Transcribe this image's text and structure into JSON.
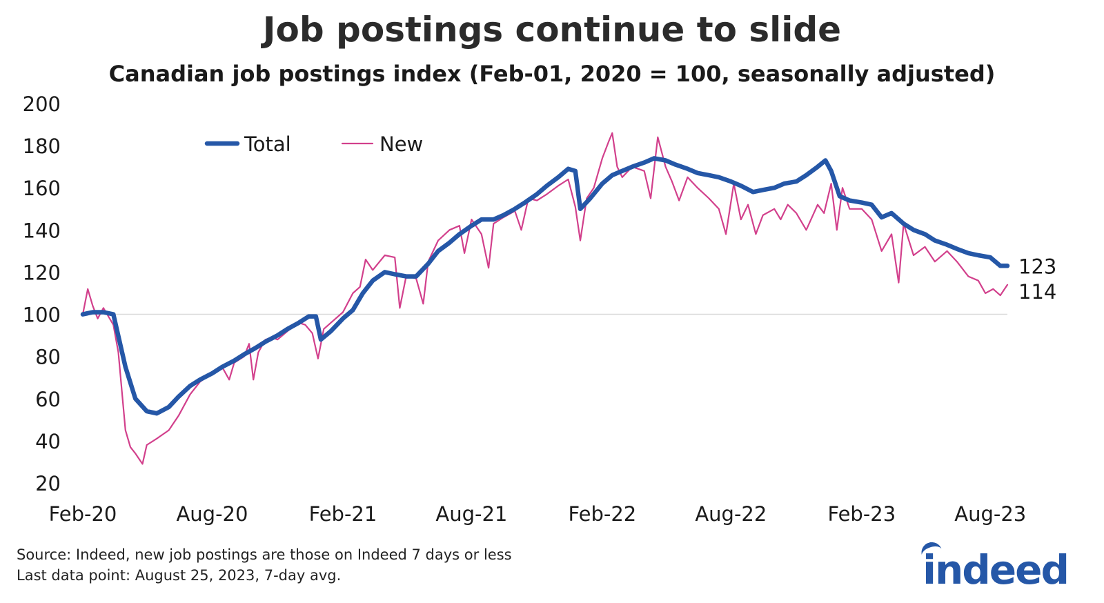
{
  "header": {
    "title": "Job postings continue to slide",
    "subtitle": "Canadian job postings index (Feb-01, 2020 = 100, seasonally adjusted)"
  },
  "footer": {
    "source": "Source: Indeed, new job postings are those on Indeed 7 days or less",
    "last_point": "Last data point: August 25, 2023, 7-day avg."
  },
  "logo": {
    "text": "indeed"
  },
  "colors": {
    "total": "#2557a7",
    "new": "#d2408c",
    "reference": "#d9d9d9"
  },
  "chart_data": {
    "type": "line",
    "title": "Job postings continue to slide",
    "subtitle": "Canadian job postings index (Feb-01, 2020 = 100, seasonally adjusted)",
    "xlabel": "",
    "ylabel": "",
    "ylim": [
      20,
      200
    ],
    "yticks": [
      20,
      40,
      60,
      80,
      100,
      120,
      140,
      160,
      180,
      200
    ],
    "xticks": [
      "Feb-20",
      "Aug-20",
      "Feb-21",
      "Aug-21",
      "Feb-22",
      "Aug-22",
      "Feb-23",
      "Aug-23"
    ],
    "x_range": [
      "2020-02-01",
      "2023-08-25"
    ],
    "reference_line": 100,
    "legend": {
      "placement": "top-left",
      "entries": [
        "Total",
        "New"
      ]
    },
    "end_labels": [
      {
        "series": "Total",
        "text": "123"
      },
      {
        "series": "New",
        "text": "114"
      }
    ],
    "series": [
      {
        "name": "Total",
        "points": [
          [
            "2020-02-01",
            100
          ],
          [
            "2020-02-15",
            101
          ],
          [
            "2020-03-01",
            101
          ],
          [
            "2020-03-15",
            100
          ],
          [
            "2020-04-01",
            75
          ],
          [
            "2020-04-15",
            60
          ],
          [
            "2020-05-01",
            54
          ],
          [
            "2020-05-15",
            53
          ],
          [
            "2020-06-01",
            56
          ],
          [
            "2020-06-15",
            61
          ],
          [
            "2020-07-01",
            66
          ],
          [
            "2020-07-15",
            69
          ],
          [
            "2020-08-01",
            72
          ],
          [
            "2020-08-15",
            75
          ],
          [
            "2020-09-01",
            78
          ],
          [
            "2020-09-15",
            81
          ],
          [
            "2020-10-01",
            84
          ],
          [
            "2020-10-15",
            87
          ],
          [
            "2020-11-01",
            90
          ],
          [
            "2020-11-15",
            93
          ],
          [
            "2020-12-01",
            96
          ],
          [
            "2020-12-15",
            99
          ],
          [
            "2020-12-25",
            99
          ],
          [
            "2021-01-01",
            88
          ],
          [
            "2021-01-15",
            92
          ],
          [
            "2021-02-01",
            98
          ],
          [
            "2021-02-15",
            102
          ],
          [
            "2021-03-01",
            110
          ],
          [
            "2021-03-15",
            116
          ],
          [
            "2021-04-01",
            120
          ],
          [
            "2021-04-15",
            119
          ],
          [
            "2021-05-01",
            118
          ],
          [
            "2021-05-15",
            118
          ],
          [
            "2021-06-01",
            124
          ],
          [
            "2021-06-15",
            130
          ],
          [
            "2021-07-01",
            134
          ],
          [
            "2021-07-15",
            138
          ],
          [
            "2021-08-01",
            142
          ],
          [
            "2021-08-15",
            145
          ],
          [
            "2021-09-01",
            145
          ],
          [
            "2021-09-15",
            147
          ],
          [
            "2021-10-01",
            150
          ],
          [
            "2021-10-15",
            153
          ],
          [
            "2021-11-01",
            157
          ],
          [
            "2021-11-15",
            161
          ],
          [
            "2021-12-01",
            165
          ],
          [
            "2021-12-15",
            169
          ],
          [
            "2021-12-25",
            168
          ],
          [
            "2022-01-01",
            150
          ],
          [
            "2022-01-15",
            155
          ],
          [
            "2022-02-01",
            162
          ],
          [
            "2022-02-15",
            166
          ],
          [
            "2022-03-01",
            168
          ],
          [
            "2022-03-15",
            170
          ],
          [
            "2022-04-01",
            172
          ],
          [
            "2022-04-15",
            174
          ],
          [
            "2022-05-01",
            173
          ],
          [
            "2022-05-15",
            171
          ],
          [
            "2022-06-01",
            169
          ],
          [
            "2022-06-15",
            167
          ],
          [
            "2022-07-01",
            166
          ],
          [
            "2022-07-15",
            165
          ],
          [
            "2022-08-01",
            163
          ],
          [
            "2022-08-15",
            161
          ],
          [
            "2022-09-01",
            158
          ],
          [
            "2022-09-15",
            159
          ],
          [
            "2022-10-01",
            160
          ],
          [
            "2022-10-15",
            162
          ],
          [
            "2022-11-01",
            163
          ],
          [
            "2022-11-15",
            166
          ],
          [
            "2022-12-01",
            170
          ],
          [
            "2022-12-12",
            173
          ],
          [
            "2022-12-20",
            168
          ],
          [
            "2023-01-01",
            156
          ],
          [
            "2023-01-15",
            154
          ],
          [
            "2023-02-01",
            153
          ],
          [
            "2023-02-15",
            152
          ],
          [
            "2023-03-01",
            146
          ],
          [
            "2023-03-15",
            148
          ],
          [
            "2023-04-01",
            143
          ],
          [
            "2023-04-15",
            140
          ],
          [
            "2023-05-01",
            138
          ],
          [
            "2023-05-15",
            135
          ],
          [
            "2023-06-01",
            133
          ],
          [
            "2023-06-15",
            131
          ],
          [
            "2023-07-01",
            129
          ],
          [
            "2023-07-15",
            128
          ],
          [
            "2023-08-01",
            127
          ],
          [
            "2023-08-15",
            123
          ],
          [
            "2023-08-25",
            123
          ]
        ]
      },
      {
        "name": "New",
        "points": [
          [
            "2020-02-01",
            100
          ],
          [
            "2020-02-08",
            112
          ],
          [
            "2020-02-15",
            104
          ],
          [
            "2020-02-22",
            98
          ],
          [
            "2020-03-01",
            103
          ],
          [
            "2020-03-08",
            99
          ],
          [
            "2020-03-15",
            95
          ],
          [
            "2020-03-22",
            82
          ],
          [
            "2020-04-01",
            45
          ],
          [
            "2020-04-08",
            37
          ],
          [
            "2020-04-15",
            34
          ],
          [
            "2020-04-25",
            29
          ],
          [
            "2020-05-01",
            38
          ],
          [
            "2020-05-15",
            41
          ],
          [
            "2020-06-01",
            45
          ],
          [
            "2020-06-15",
            52
          ],
          [
            "2020-07-01",
            62
          ],
          [
            "2020-07-15",
            68
          ],
          [
            "2020-08-01",
            72
          ],
          [
            "2020-08-15",
            75
          ],
          [
            "2020-08-25",
            69
          ],
          [
            "2020-09-01",
            77
          ],
          [
            "2020-09-15",
            80
          ],
          [
            "2020-09-22",
            86
          ],
          [
            "2020-09-28",
            69
          ],
          [
            "2020-10-05",
            82
          ],
          [
            "2020-10-15",
            88
          ],
          [
            "2020-10-25",
            89
          ],
          [
            "2020-11-01",
            88
          ],
          [
            "2020-11-15",
            92
          ],
          [
            "2020-12-01",
            96
          ],
          [
            "2020-12-10",
            95
          ],
          [
            "2020-12-20",
            91
          ],
          [
            "2020-12-28",
            79
          ],
          [
            "2021-01-05",
            93
          ],
          [
            "2021-01-15",
            96
          ],
          [
            "2021-02-01",
            101
          ],
          [
            "2021-02-15",
            110
          ],
          [
            "2021-02-25",
            113
          ],
          [
            "2021-03-05",
            126
          ],
          [
            "2021-03-15",
            121
          ],
          [
            "2021-04-01",
            128
          ],
          [
            "2021-04-15",
            127
          ],
          [
            "2021-04-22",
            103
          ],
          [
            "2021-05-01",
            118
          ],
          [
            "2021-05-15",
            117
          ],
          [
            "2021-05-25",
            105
          ],
          [
            "2021-06-01",
            125
          ],
          [
            "2021-06-15",
            135
          ],
          [
            "2021-07-01",
            140
          ],
          [
            "2021-07-15",
            142
          ],
          [
            "2021-07-22",
            129
          ],
          [
            "2021-08-01",
            145
          ],
          [
            "2021-08-15",
            138
          ],
          [
            "2021-08-25",
            122
          ],
          [
            "2021-09-01",
            143
          ],
          [
            "2021-09-15",
            146
          ],
          [
            "2021-10-01",
            149
          ],
          [
            "2021-10-10",
            140
          ],
          [
            "2021-10-20",
            155
          ],
          [
            "2021-11-01",
            154
          ],
          [
            "2021-11-15",
            157
          ],
          [
            "2021-12-01",
            161
          ],
          [
            "2021-12-15",
            164
          ],
          [
            "2021-12-25",
            151
          ],
          [
            "2022-01-01",
            135
          ],
          [
            "2022-01-10",
            155
          ],
          [
            "2022-01-20",
            160
          ],
          [
            "2022-02-01",
            174
          ],
          [
            "2022-02-10",
            182
          ],
          [
            "2022-02-15",
            186
          ],
          [
            "2022-02-22",
            170
          ],
          [
            "2022-03-01",
            165
          ],
          [
            "2022-03-15",
            170
          ],
          [
            "2022-04-01",
            168
          ],
          [
            "2022-04-10",
            155
          ],
          [
            "2022-04-20",
            184
          ],
          [
            "2022-05-01",
            170
          ],
          [
            "2022-05-10",
            163
          ],
          [
            "2022-05-20",
            154
          ],
          [
            "2022-06-01",
            165
          ],
          [
            "2022-06-15",
            160
          ],
          [
            "2022-07-01",
            155
          ],
          [
            "2022-07-15",
            150
          ],
          [
            "2022-07-25",
            138
          ],
          [
            "2022-08-05",
            162
          ],
          [
            "2022-08-15",
            145
          ],
          [
            "2022-08-25",
            152
          ],
          [
            "2022-09-05",
            138
          ],
          [
            "2022-09-15",
            147
          ],
          [
            "2022-10-01",
            150
          ],
          [
            "2022-10-10",
            145
          ],
          [
            "2022-10-20",
            152
          ],
          [
            "2022-11-01",
            148
          ],
          [
            "2022-11-15",
            140
          ],
          [
            "2022-12-01",
            152
          ],
          [
            "2022-12-10",
            148
          ],
          [
            "2022-12-20",
            162
          ],
          [
            "2022-12-28",
            140
          ],
          [
            "2023-01-05",
            160
          ],
          [
            "2023-01-15",
            150
          ],
          [
            "2023-02-01",
            150
          ],
          [
            "2023-02-15",
            145
          ],
          [
            "2023-03-01",
            130
          ],
          [
            "2023-03-15",
            138
          ],
          [
            "2023-03-25",
            115
          ],
          [
            "2023-04-01",
            143
          ],
          [
            "2023-04-15",
            128
          ],
          [
            "2023-05-01",
            132
          ],
          [
            "2023-05-15",
            125
          ],
          [
            "2023-06-01",
            130
          ],
          [
            "2023-06-15",
            125
          ],
          [
            "2023-07-01",
            118
          ],
          [
            "2023-07-15",
            116
          ],
          [
            "2023-07-25",
            110
          ],
          [
            "2023-08-05",
            112
          ],
          [
            "2023-08-15",
            109
          ],
          [
            "2023-08-25",
            114
          ]
        ]
      }
    ]
  }
}
